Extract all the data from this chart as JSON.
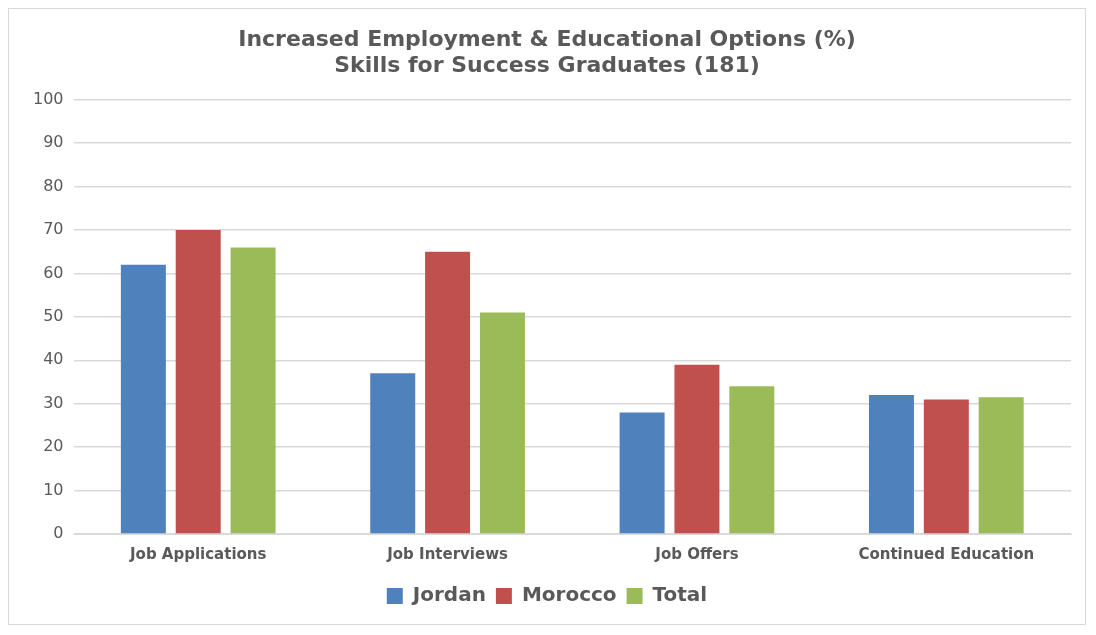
{
  "chart_data": {
    "type": "bar",
    "title": [
      "Increased Employment & Educational Options (%)",
      "Skills for Success Graduates (181)"
    ],
    "categories": [
      "Job Applications",
      "Job Interviews",
      "Job Offers",
      "Continued Education"
    ],
    "series": [
      {
        "name": "Jordan",
        "color": "#4f81bd",
        "values": [
          62,
          37,
          28,
          32
        ]
      },
      {
        "name": "Morocco",
        "color": "#c0504d",
        "values": [
          70,
          65,
          39,
          31
        ]
      },
      {
        "name": "Total",
        "color": "#9bbb59",
        "values": [
          66,
          51,
          34,
          31.5
        ]
      }
    ],
    "ylim": [
      0,
      100
    ],
    "yticks": [
      0,
      10,
      20,
      30,
      40,
      50,
      60,
      70,
      80,
      90,
      100
    ],
    "grid": "y",
    "legend": "bottom"
  }
}
